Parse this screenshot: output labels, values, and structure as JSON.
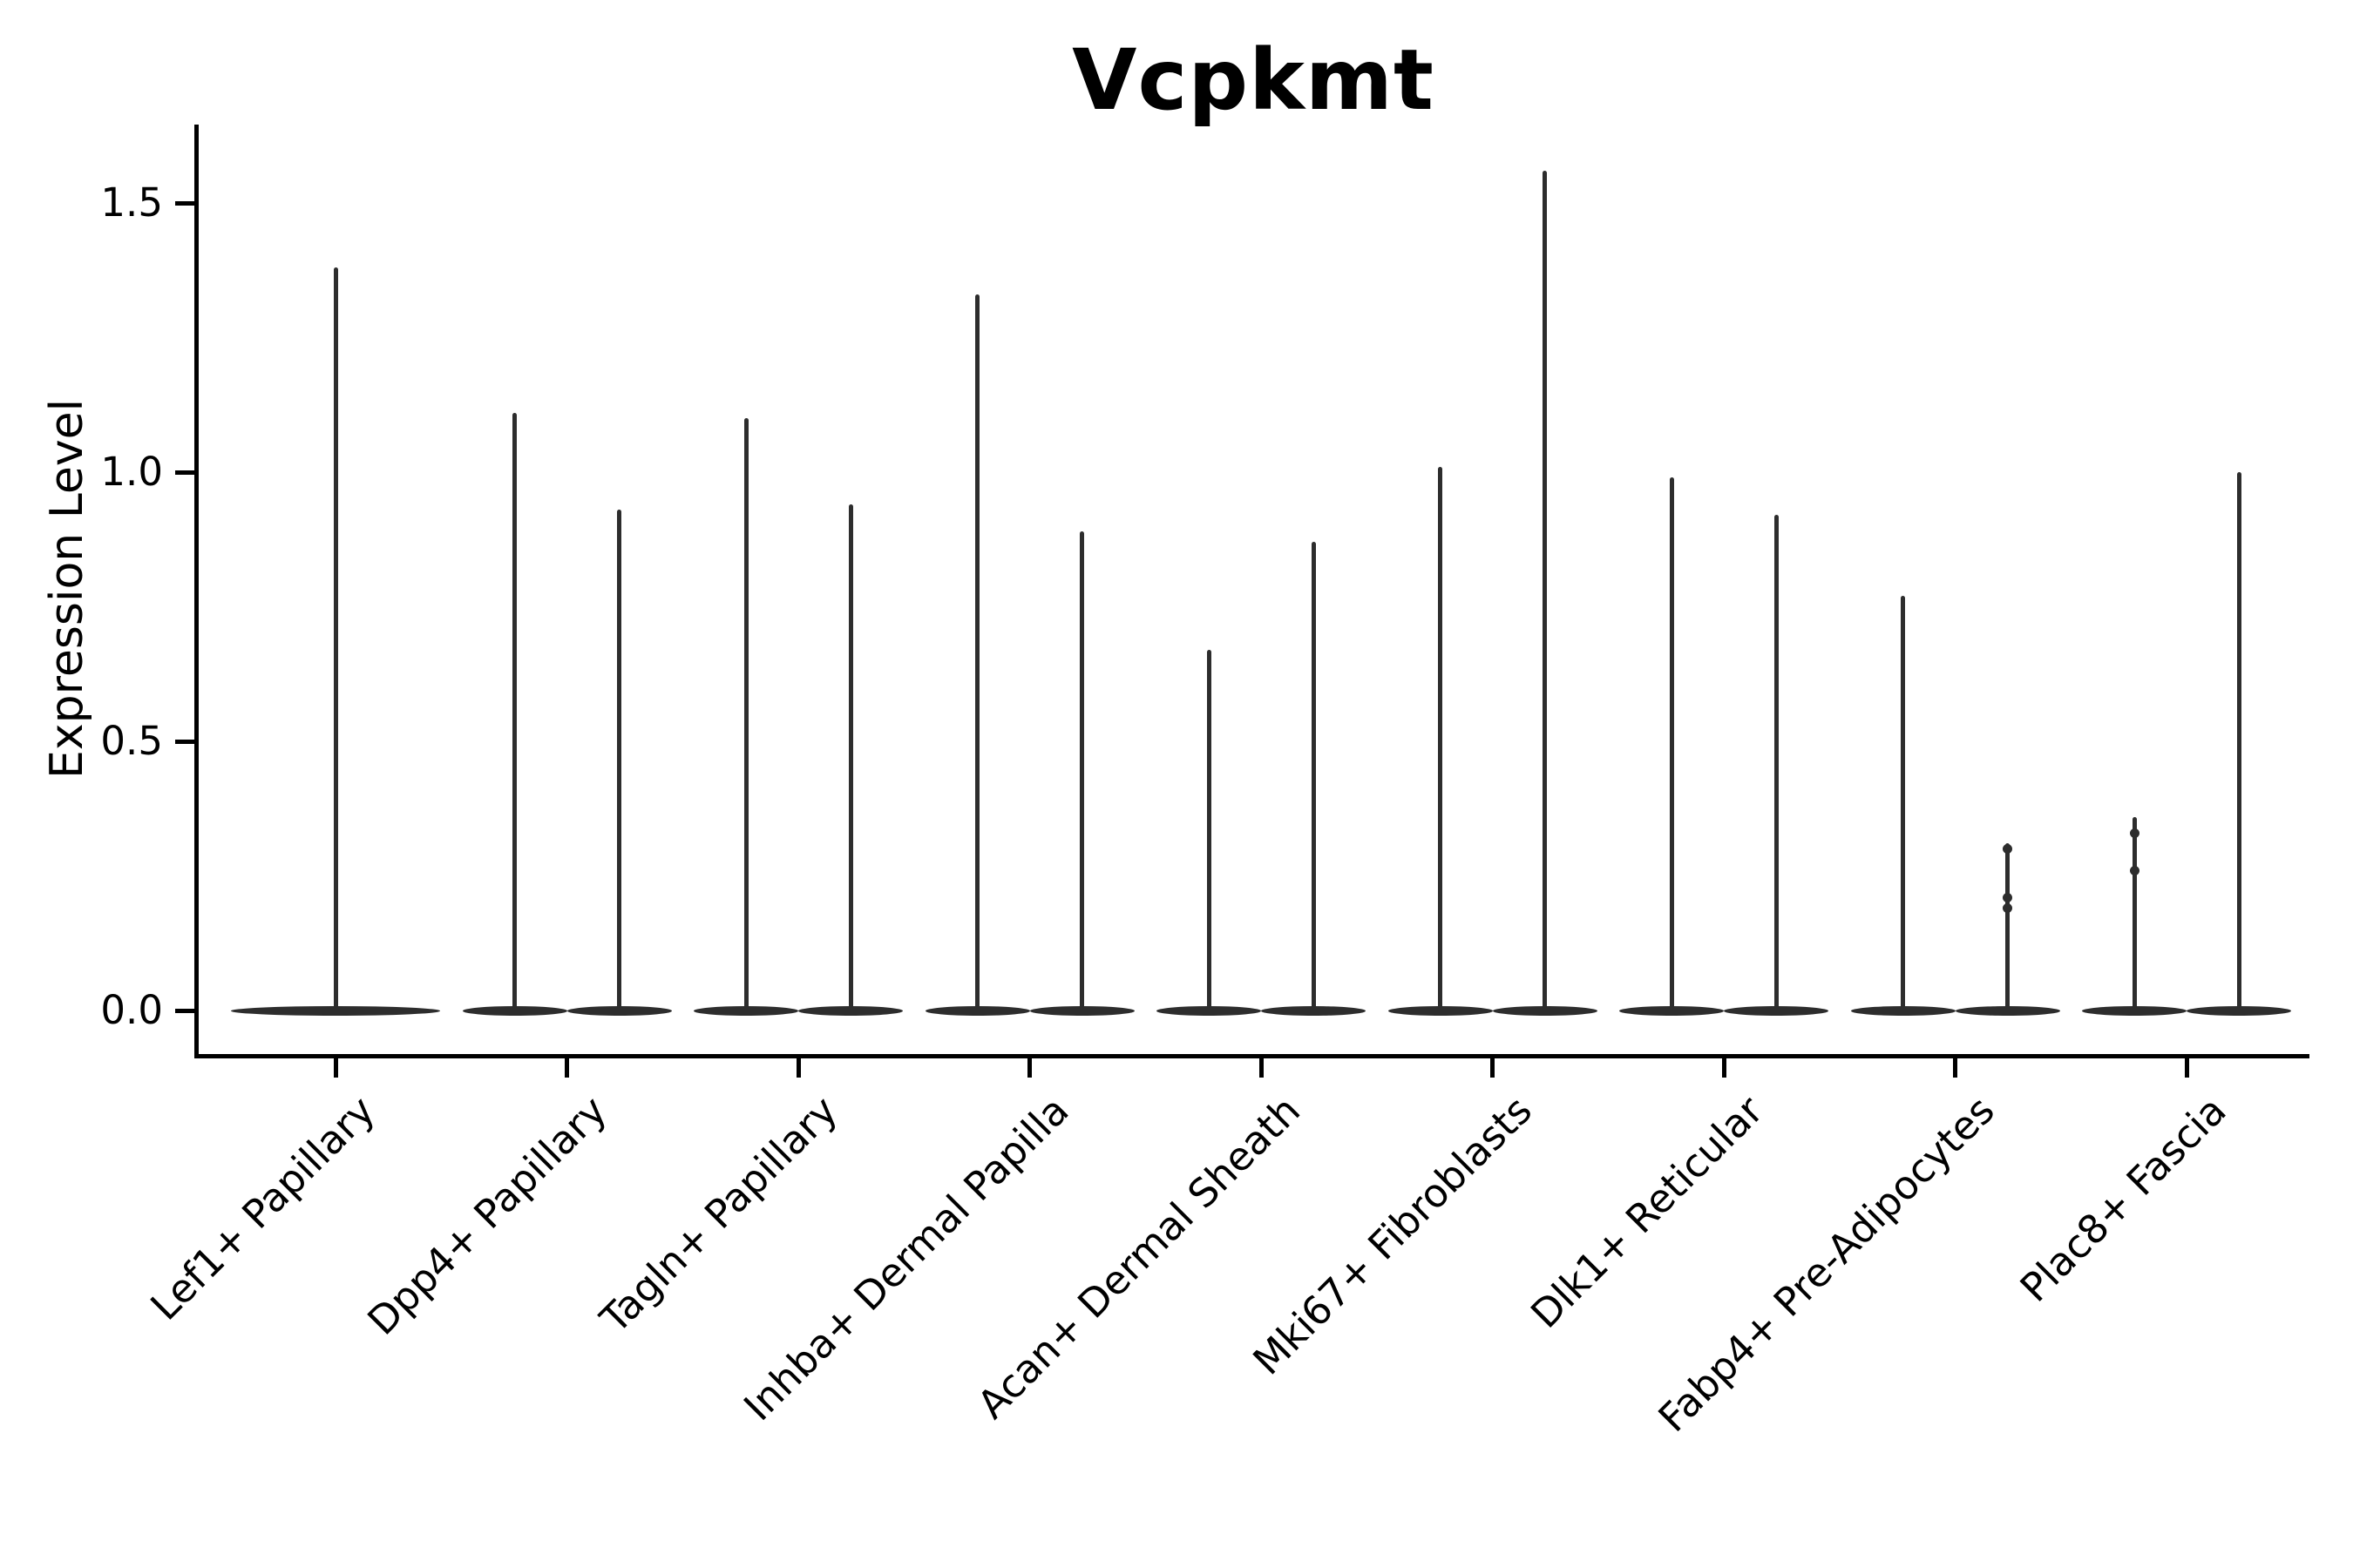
{
  "title": "Vcpkmt",
  "axes": {
    "ylabel": "Expression Level",
    "xlabel": "",
    "ytick_labels": [
      "0.0",
      "0.5",
      "1.0",
      "1.5"
    ]
  },
  "chart_data": {
    "type": "violin",
    "title": "Vcpkmt",
    "ylabel": "Expression Level",
    "xlabel": "",
    "ylim": [
      -0.08,
      1.64
    ],
    "yticks": [
      0.0,
      0.5,
      1.0,
      1.5
    ],
    "ytick_labels": [
      "0.0",
      "0.5",
      "1.0",
      "1.5"
    ],
    "grid": false,
    "legend_position": "none",
    "xtick_rotation": 45,
    "description": "Single-cell gene expression violin plot for gene Vcpkmt across 9 fibroblast cell-type clusters. Nearly all density sits at expression 0 (flat lens-shaped bases); each violin collapses to a hair-thin vertical spike reaching its maximum expression value. Every category holds two adjacent violins except the first, which holds one full-width violin. Two short spikes (Fabp4+ second violin, Plac8+ first violin) show small knot-like bulges at quantized expression values.",
    "categories": [
      "Lef1+ Papillary",
      "Dpp4+ Papillary",
      "Tagln+ Papillary",
      "Inhba+ Dermal Papilla",
      "Acan+ Dermal Sheath",
      "Mki67+ Fibroblasts",
      "Dlk1+ Reticular",
      "Fabp4+ Pre-Adipocytes",
      "Plac8+ Fascia"
    ],
    "violins": [
      {
        "category": "Lef1+ Papillary",
        "maxima": [
          1.38
        ],
        "knots": [
          []
        ]
      },
      {
        "category": "Dpp4+ Papillary",
        "maxima": [
          1.11,
          0.93
        ],
        "knots": [
          [],
          []
        ]
      },
      {
        "category": "Tagln+ Papillary",
        "maxima": [
          1.1,
          0.94
        ],
        "knots": [
          [],
          []
        ]
      },
      {
        "category": "Inhba+ Dermal Papilla",
        "maxima": [
          1.33,
          0.89
        ],
        "knots": [
          [],
          []
        ]
      },
      {
        "category": "Acan+ Dermal Sheath",
        "maxima": [
          0.67,
          0.87
        ],
        "knots": [
          [],
          []
        ]
      },
      {
        "category": "Mki67+ Fibroblasts",
        "maxima": [
          1.01,
          1.56
        ],
        "knots": [
          [],
          []
        ]
      },
      {
        "category": "Dlk1+ Reticular",
        "maxima": [
          0.99,
          0.92
        ],
        "knots": [
          [],
          []
        ]
      },
      {
        "category": "Fabp4+ Pre-Adipocytes",
        "maxima": [
          0.77,
          0.31
        ],
        "knots": [
          [],
          [
            0.3,
            0.21,
            0.19
          ]
        ]
      },
      {
        "category": "Plac8+ Fascia",
        "maxima": [
          0.36,
          1.0
        ],
        "knots": [
          [
            0.33,
            0.26
          ],
          []
        ]
      }
    ],
    "colors": {
      "violin": "#2d2d2d",
      "axis": "#000000",
      "text": "#000000",
      "background": "#ffffff"
    }
  }
}
